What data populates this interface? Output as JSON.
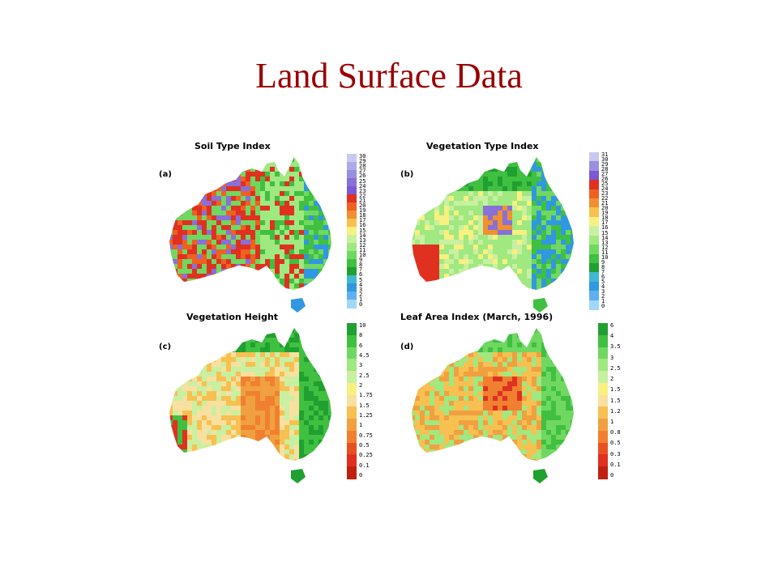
{
  "slide": {
    "title": "Land Surface Data"
  },
  "panels": [
    {
      "id": "a",
      "label": "(a)",
      "title": "Soil Type Index",
      "scheme": "soil",
      "ticks": [
        "30",
        "29",
        "28",
        "27",
        "26",
        "25",
        "24",
        "23",
        "22",
        "21",
        "20",
        "19",
        "18",
        "17",
        "16",
        "15",
        "14",
        "13",
        "12",
        "11",
        "10",
        "9",
        "8",
        "7",
        "6",
        "5",
        "4",
        "3",
        "2",
        "1",
        "0"
      ],
      "colors": [
        "#c8c8f0",
        "#b0a8e8",
        "#9a8ee0",
        "#8870d8",
        "#7a5ad0",
        "#e03020",
        "#f06020",
        "#f09030",
        "#f8c050",
        "#f8f080",
        "#c8f0a0",
        "#a0e880",
        "#70d860",
        "#40c040",
        "#20a030",
        "#40b8d0",
        "#3098e0",
        "#60b0f0",
        "#a0d8f8"
      ]
    },
    {
      "id": "b",
      "label": "(b)",
      "title": "Vegetation Type Index",
      "scheme": "veg",
      "ticks": [
        "31",
        "30",
        "29",
        "28",
        "27",
        "26",
        "25",
        "24",
        "23",
        "22",
        "21",
        "20",
        "19",
        "18",
        "17",
        "16",
        "15",
        "14",
        "13",
        "12",
        "11",
        "10",
        "9",
        "8",
        "7",
        "6",
        "5",
        "4",
        "3",
        "2",
        "1",
        "0"
      ],
      "colors": [
        "#c8c8f0",
        "#9a8ee0",
        "#7a5ad0",
        "#e03020",
        "#f06020",
        "#f09030",
        "#f8c050",
        "#f8f080",
        "#c8f0a0",
        "#a0e880",
        "#70d860",
        "#40c040",
        "#20a030",
        "#40b8d0",
        "#3098e0",
        "#60b0f0",
        "#a0d8f8"
      ]
    },
    {
      "id": "c",
      "label": "(c)",
      "title": "Vegetation Height",
      "scheme": "height",
      "ticks": [
        "10",
        "8",
        "6",
        "4.5",
        "3",
        "2.5",
        "2",
        "1.75",
        "1.5",
        "1.25",
        "1",
        "0.75",
        "0.5",
        "0.25",
        "0.1",
        "0"
      ],
      "colors": [
        "#20a030",
        "#40c040",
        "#70d860",
        "#a0e880",
        "#c8f0a0",
        "#f8f080",
        "#f8e0a0",
        "#f8c050",
        "#f0a040",
        "#f08030",
        "#e85020",
        "#e03020",
        "#c02010"
      ]
    },
    {
      "id": "d",
      "label": "(d)",
      "title": "Leaf Area Index (March, 1996)",
      "scheme": "lai",
      "ticks": [
        "6",
        "4",
        "3.5",
        "3",
        "2.5",
        "2",
        "1.5",
        "1.5",
        "1.2",
        "1",
        "0.8",
        "0.5",
        "0.3",
        "0.1",
        "0"
      ],
      "colors": [
        "#20a030",
        "#40c040",
        "#70d860",
        "#a0e880",
        "#c8f0a0",
        "#f8f080",
        "#f8e0a0",
        "#f8c050",
        "#f0a040",
        "#f08030",
        "#e85020",
        "#e03020",
        "#c02010"
      ]
    }
  ]
}
